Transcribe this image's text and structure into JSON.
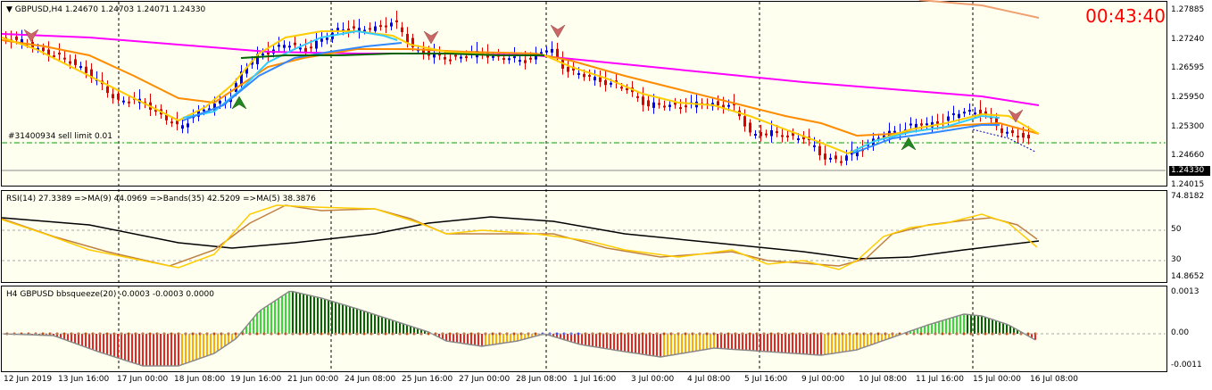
{
  "main": {
    "header": "GBPUSD,H4  1.24670 1.24703 1.24071 1.24330",
    "countdown": "00:43:40",
    "order_label": "#31400934 sell limit 0.01",
    "current_price": "1.24330",
    "price_ticks": [
      "1.27885",
      "1.27240",
      "1.26595",
      "1.25950",
      "1.25300",
      "1.24660",
      "1.24015"
    ]
  },
  "rsi": {
    "header": "RSI(14) 27.3389  =>MA(9) 44.0969  =>Bands(35) 42.5209  =>MA(5) 38.3876",
    "ticks": [
      "74.8182",
      "50",
      "30",
      "14.8652"
    ]
  },
  "bbsqueeze": {
    "header": "H4 GBPUSD bbsqueeze(20) -0.0003 -0.0003 0.0000",
    "ticks": [
      "0.0013",
      "0.00",
      "-0.0011"
    ]
  },
  "time_axis": [
    "12 Jun 2019",
    "13 Jun 16:00",
    "17 Jun 00:00",
    "18 Jun 08:00",
    "19 Jun 16:00",
    "21 Jun 00:00",
    "24 Jun 08:00",
    "25 Jun 16:00",
    "27 Jun 00:00",
    "28 Jun 08:00",
    "1 Jul 16:00",
    "3 Jul 00:00",
    "4 Jul 08:00",
    "5 Jul 16:00",
    "9 Jul 00:00",
    "10 Jul 08:00",
    "11 Jul 16:00",
    "15 Jul 00:00",
    "16 Jul 08:00"
  ],
  "colors": {
    "bull": "#0000ff",
    "bear": "#e00000",
    "ma_magenta": "#ff00ff",
    "ma_orange": "#ff8c00",
    "ma_yellow": "#ffcc00",
    "ma_cyan": "#33ccff",
    "ma_green": "#006400",
    "countdown": "#ff0000"
  }
}
